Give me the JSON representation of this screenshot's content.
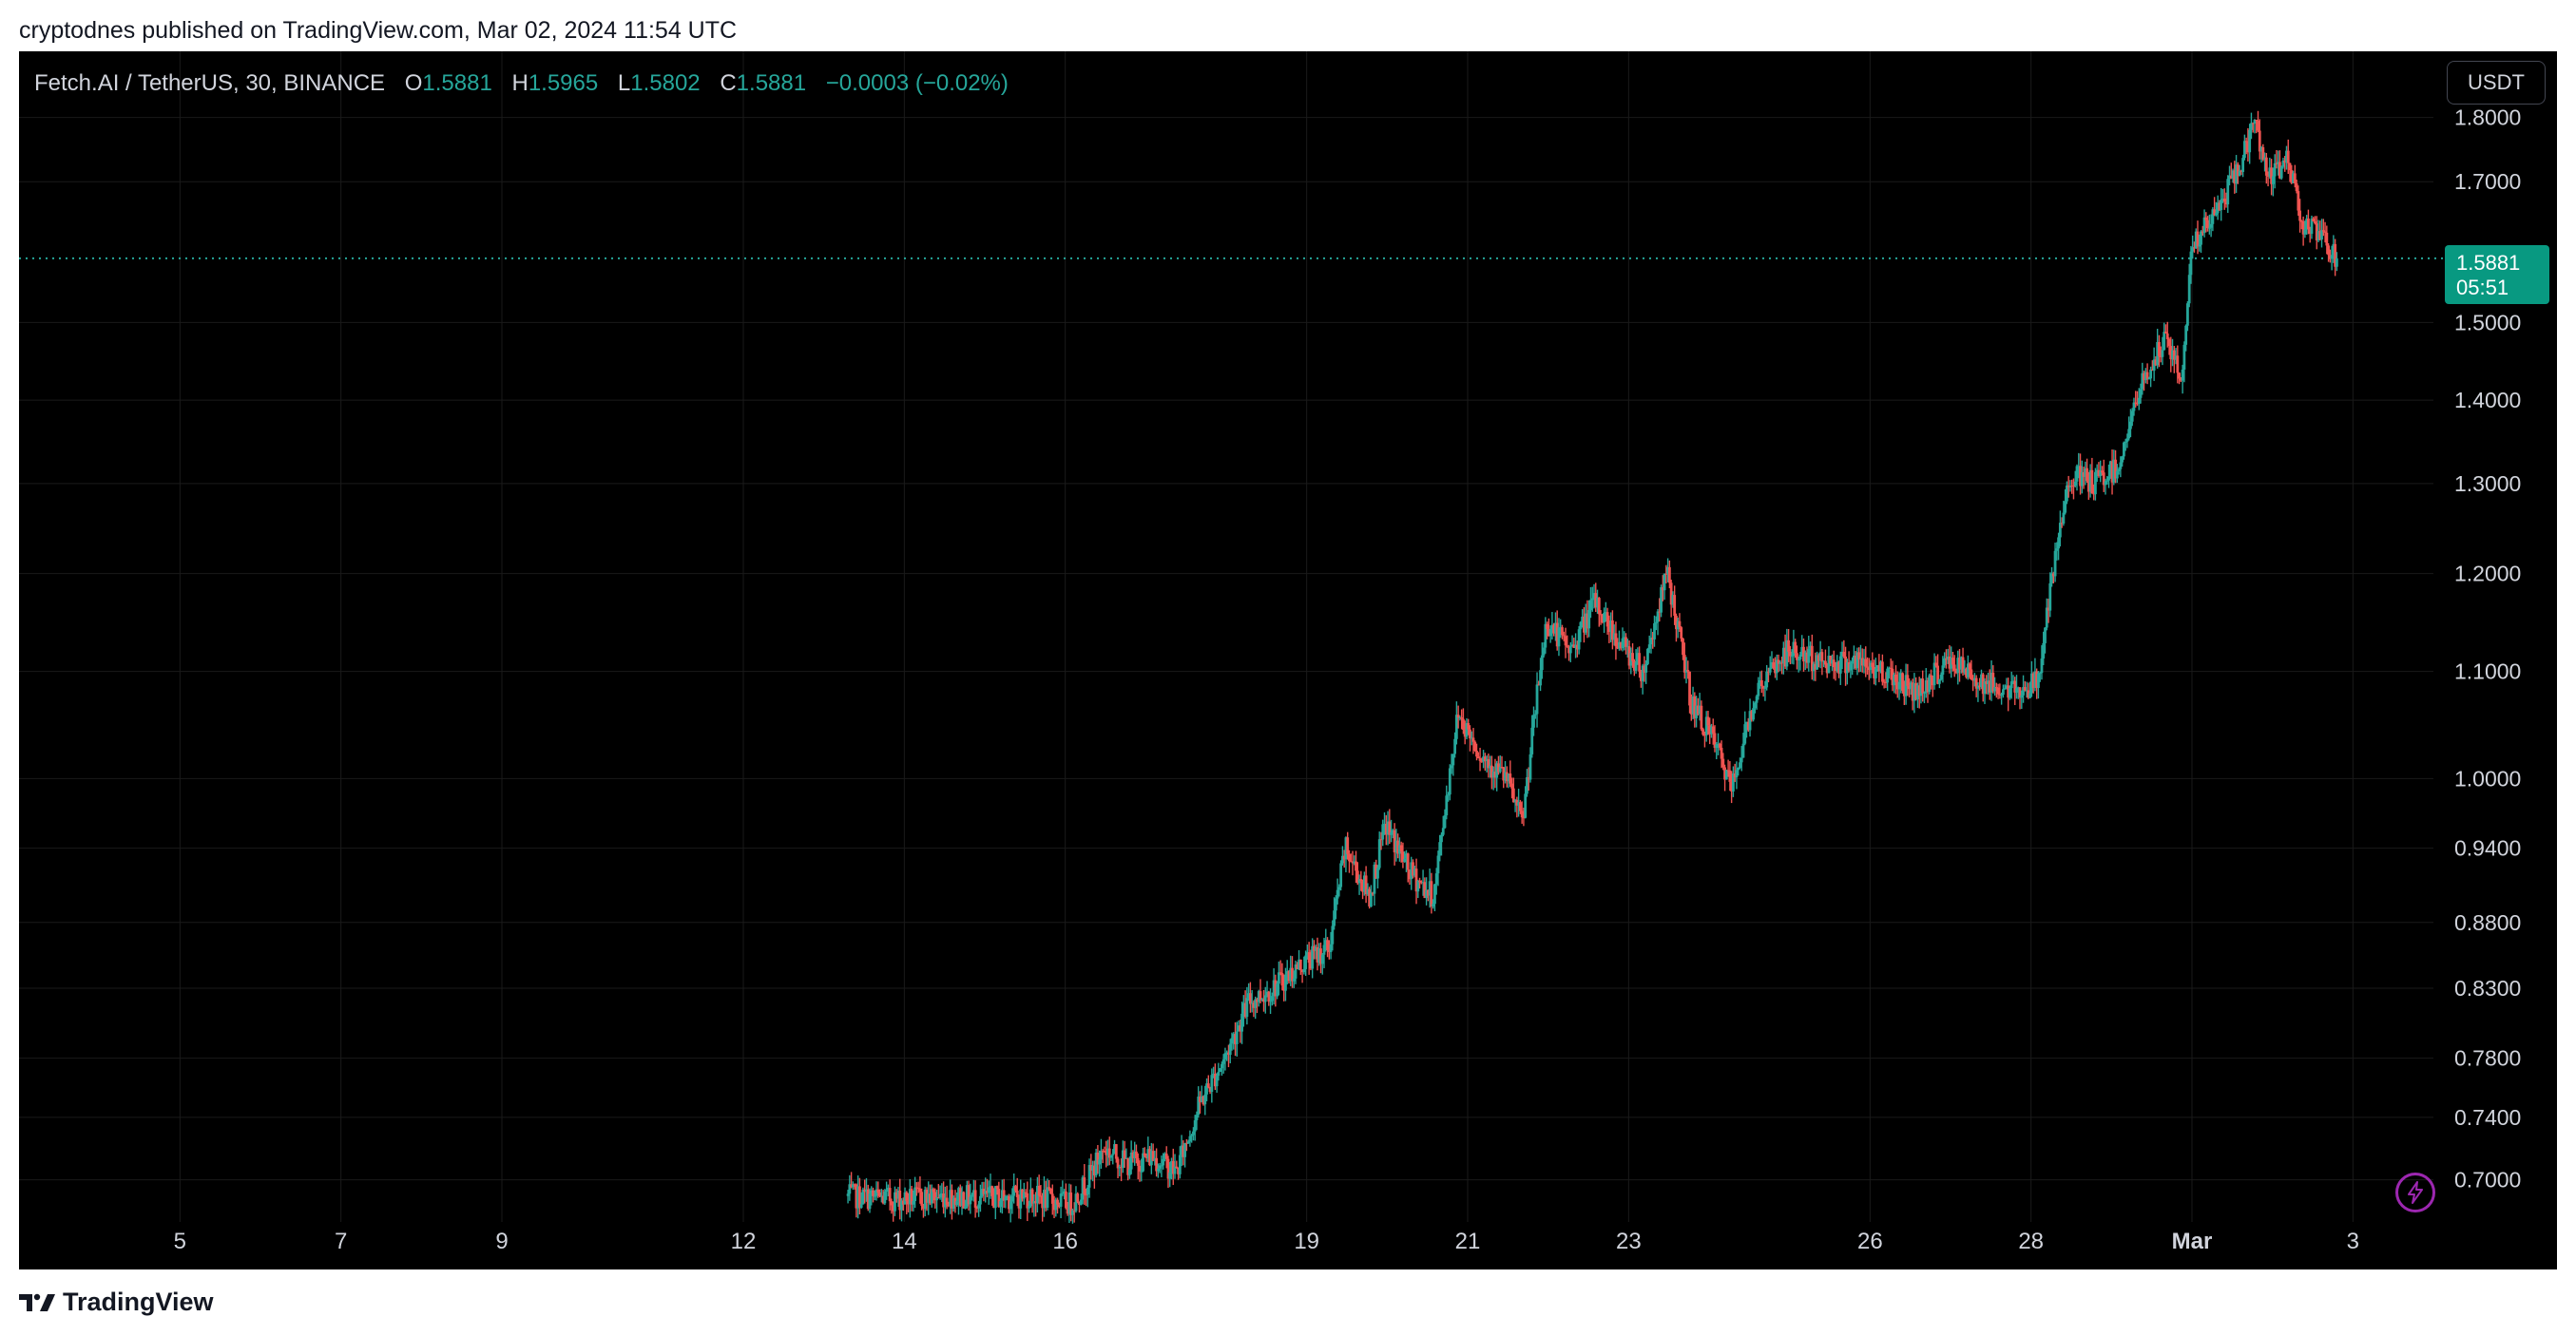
{
  "header": {
    "published_text": "cryptodnes published on TradingView.com, Mar 02, 2024 11:54 UTC"
  },
  "legend": {
    "symbol": "Fetch.AI / TetherUS, 30, BINANCE",
    "open_label": "O",
    "open": "1.5881",
    "high_label": "H",
    "high": "1.5965",
    "low_label": "L",
    "low": "1.5802",
    "close_label": "C",
    "close": "1.5881",
    "change": "−0.0003 (−0.02%)"
  },
  "currency_button": "USDT",
  "last_price": {
    "price": "1.5881",
    "countdown": "05:51"
  },
  "footer": {
    "brand": "TradingView"
  },
  "colors": {
    "up": "#26a69a",
    "down": "#ef5350",
    "price_tag": "#089981",
    "background": "#000000",
    "axis_text": "#d1d4dc",
    "bolt": "#9c27b0"
  },
  "icons": [
    "bolt-icon",
    "tradingview-logo-icon"
  ],
  "chart_data": {
    "type": "candlestick",
    "y_scale": "log",
    "ylim": [
      0.68,
      1.83
    ],
    "y_ticks": [
      "1.8000",
      "1.7000",
      "1.5000",
      "1.4000",
      "1.3000",
      "1.2000",
      "1.1000",
      "1.0000",
      "0.9400",
      "0.8800",
      "0.8300",
      "0.7800",
      "0.7400",
      "0.7000"
    ],
    "x_ticks": [
      "5",
      "7",
      "9",
      "12",
      "14",
      "16",
      "19",
      "21",
      "23",
      "26",
      "28",
      "Mar",
      "3"
    ],
    "x_domain_days": [
      3.0,
      33.0
    ],
    "current_price": 1.5881,
    "series": [
      {
        "day": 13.3,
        "value": 0.69
      },
      {
        "day": 14.0,
        "value": 0.688
      },
      {
        "day": 14.5,
        "value": 0.69
      },
      {
        "day": 15.0,
        "value": 0.689
      },
      {
        "day": 15.6,
        "value": 0.69
      },
      {
        "day": 16.1,
        "value": 0.685
      },
      {
        "day": 16.3,
        "value": 0.7
      },
      {
        "day": 16.5,
        "value": 0.72
      },
      {
        "day": 16.8,
        "value": 0.71
      },
      {
        "day": 17.1,
        "value": 0.715
      },
      {
        "day": 17.4,
        "value": 0.705
      },
      {
        "day": 17.7,
        "value": 0.75
      },
      {
        "day": 18.0,
        "value": 0.78
      },
      {
        "day": 18.3,
        "value": 0.82
      },
      {
        "day": 18.6,
        "value": 0.83
      },
      {
        "day": 19.0,
        "value": 0.85
      },
      {
        "day": 19.3,
        "value": 0.86
      },
      {
        "day": 19.5,
        "value": 0.94
      },
      {
        "day": 19.8,
        "value": 0.9
      },
      {
        "day": 20.0,
        "value": 0.96
      },
      {
        "day": 20.3,
        "value": 0.92
      },
      {
        "day": 20.6,
        "value": 0.9
      },
      {
        "day": 20.9,
        "value": 1.06
      },
      {
        "day": 21.2,
        "value": 1.02
      },
      {
        "day": 21.5,
        "value": 1.0
      },
      {
        "day": 21.7,
        "value": 0.96
      },
      {
        "day": 22.0,
        "value": 1.15
      },
      {
        "day": 22.3,
        "value": 1.12
      },
      {
        "day": 22.6,
        "value": 1.17
      },
      {
        "day": 22.9,
        "value": 1.13
      },
      {
        "day": 23.2,
        "value": 1.1
      },
      {
        "day": 23.5,
        "value": 1.2
      },
      {
        "day": 23.8,
        "value": 1.07
      },
      {
        "day": 24.1,
        "value": 1.03
      },
      {
        "day": 24.3,
        "value": 0.99
      },
      {
        "day": 24.6,
        "value": 1.08
      },
      {
        "day": 25.0,
        "value": 1.12
      },
      {
        "day": 25.4,
        "value": 1.11
      },
      {
        "day": 25.8,
        "value": 1.11
      },
      {
        "day": 26.2,
        "value": 1.1
      },
      {
        "day": 26.6,
        "value": 1.08
      },
      {
        "day": 27.0,
        "value": 1.11
      },
      {
        "day": 27.4,
        "value": 1.09
      },
      {
        "day": 27.8,
        "value": 1.08
      },
      {
        "day": 28.1,
        "value": 1.09
      },
      {
        "day": 28.3,
        "value": 1.2
      },
      {
        "day": 28.5,
        "value": 1.31
      },
      {
        "day": 28.8,
        "value": 1.3
      },
      {
        "day": 29.1,
        "value": 1.32
      },
      {
        "day": 29.4,
        "value": 1.42
      },
      {
        "day": 29.7,
        "value": 1.48
      },
      {
        "day": 29.9,
        "value": 1.42
      },
      {
        "day": 30.0,
        "value": 1.6
      },
      {
        "day": 30.3,
        "value": 1.65
      },
      {
        "day": 30.6,
        "value": 1.72
      },
      {
        "day": 30.8,
        "value": 1.79
      },
      {
        "day": 31.0,
        "value": 1.7
      },
      {
        "day": 31.2,
        "value": 1.74
      },
      {
        "day": 31.4,
        "value": 1.64
      },
      {
        "day": 31.6,
        "value": 1.62
      },
      {
        "day": 31.8,
        "value": 1.5881
      }
    ]
  }
}
